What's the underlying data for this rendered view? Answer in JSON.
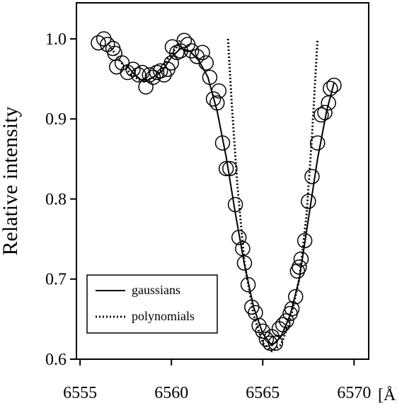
{
  "chart_data": {
    "type": "scatter",
    "title": "",
    "xlabel": "",
    "x_unit": "[Å]",
    "ylabel": "Relative intensity",
    "xlim": [
      6554.8,
      6570.8
    ],
    "ylim": [
      0.6,
      1.045
    ],
    "x_ticks": [
      6555,
      6560,
      6565,
      6570
    ],
    "y_ticks": [
      0.6,
      0.7,
      0.8,
      0.9,
      1.0
    ],
    "x_tick_labels": [
      "6555",
      "6560",
      "6565",
      "6570"
    ],
    "y_tick_labels": [
      "0.6",
      "0.7",
      "0.8",
      "0.9",
      "1.0"
    ],
    "grid": false,
    "legend_position": "bottom-left",
    "legend": [
      {
        "label": "gaussians",
        "style": "solid"
      },
      {
        "label": "polynomials",
        "style": "dotted"
      }
    ],
    "series": [
      {
        "type": "scatter",
        "marker": "open-circle",
        "points": [
          [
            6556.0,
            0.995
          ],
          [
            6556.3,
            1.0
          ],
          [
            6556.5,
            0.993
          ],
          [
            6556.8,
            0.988
          ],
          [
            6556.9,
            0.982
          ],
          [
            6557.0,
            0.965
          ],
          [
            6557.3,
            0.97
          ],
          [
            6557.6,
            0.958
          ],
          [
            6557.9,
            0.962
          ],
          [
            6558.2,
            0.955
          ],
          [
            6558.4,
            0.958
          ],
          [
            6558.6,
            0.94
          ],
          [
            6558.8,
            0.955
          ],
          [
            6559.0,
            0.952
          ],
          [
            6559.2,
            0.958
          ],
          [
            6559.4,
            0.96
          ],
          [
            6559.6,
            0.955
          ],
          [
            6559.8,
            0.962
          ],
          [
            6560.0,
            0.97
          ],
          [
            6560.05,
            0.99
          ],
          [
            6560.3,
            0.983
          ],
          [
            6560.5,
            0.985
          ],
          [
            6560.7,
            0.998
          ],
          [
            6560.9,
            0.993
          ],
          [
            6561.1,
            0.985
          ],
          [
            6561.4,
            0.978
          ],
          [
            6561.7,
            0.983
          ],
          [
            6561.9,
            0.97
          ],
          [
            6562.1,
            0.952
          ],
          [
            6562.3,
            0.925
          ],
          [
            6562.5,
            0.92
          ],
          [
            6562.6,
            0.935
          ],
          [
            6562.8,
            0.87
          ],
          [
            6563.0,
            0.838
          ],
          [
            6563.2,
            0.838
          ],
          [
            6563.5,
            0.793
          ],
          [
            6563.7,
            0.752
          ],
          [
            6563.9,
            0.738
          ],
          [
            6564.0,
            0.72
          ],
          [
            6564.2,
            0.693
          ],
          [
            6564.4,
            0.665
          ],
          [
            6564.6,
            0.658
          ],
          [
            6564.8,
            0.642
          ],
          [
            6565.0,
            0.635
          ],
          [
            6565.2,
            0.625
          ],
          [
            6565.4,
            0.62
          ],
          [
            6565.5,
            0.628
          ],
          [
            6565.7,
            0.62
          ],
          [
            6565.9,
            0.638
          ],
          [
            6566.1,
            0.643
          ],
          [
            6566.3,
            0.648
          ],
          [
            6566.5,
            0.657
          ],
          [
            6566.6,
            0.663
          ],
          [
            6566.8,
            0.678
          ],
          [
            6566.9,
            0.71
          ],
          [
            6567.0,
            0.715
          ],
          [
            6567.1,
            0.725
          ],
          [
            6567.3,
            0.748
          ],
          [
            6567.5,
            0.797
          ],
          [
            6567.7,
            0.828
          ],
          [
            6568.0,
            0.87
          ],
          [
            6568.2,
            0.905
          ],
          [
            6568.4,
            0.908
          ],
          [
            6568.6,
            0.92
          ],
          [
            6568.7,
            0.938
          ],
          [
            6568.9,
            0.942
          ]
        ]
      },
      {
        "name": "gaussians",
        "type": "line",
        "style": "solid",
        "points": [
          [
            6557.5,
            0.968
          ],
          [
            6558.0,
            0.955
          ],
          [
            6558.5,
            0.946
          ],
          [
            6559.0,
            0.952
          ],
          [
            6559.5,
            0.96
          ],
          [
            6560.0,
            0.977
          ],
          [
            6560.5,
            0.988
          ],
          [
            6561.0,
            0.985
          ],
          [
            6561.5,
            0.973
          ],
          [
            6562.0,
            0.952
          ],
          [
            6562.5,
            0.91
          ],
          [
            6563.0,
            0.852
          ],
          [
            6563.5,
            0.782
          ],
          [
            6564.0,
            0.718
          ],
          [
            6564.5,
            0.665
          ],
          [
            6565.0,
            0.632
          ],
          [
            6565.5,
            0.617
          ],
          [
            6566.0,
            0.628
          ],
          [
            6566.5,
            0.655
          ],
          [
            6567.0,
            0.7
          ],
          [
            6567.5,
            0.775
          ],
          [
            6568.0,
            0.85
          ],
          [
            6568.5,
            0.91
          ],
          [
            6568.9,
            0.945
          ]
        ]
      },
      {
        "name": "polynomials",
        "type": "line",
        "style": "dotted",
        "segments": [
          [
            [
              6556.6,
              0.992
            ],
            [
              6557.2,
              0.972
            ],
            [
              6557.8,
              0.955
            ],
            [
              6558.3,
              0.948
            ],
            [
              6558.8,
              0.95
            ],
            [
              6559.3,
              0.955
            ],
            [
              6559.8,
              0.975
            ],
            [
              6560.3,
              0.99
            ],
            [
              6560.5,
              1.0
            ]
          ],
          [
            [
              6563.1,
              1.0
            ],
            [
              6563.3,
              0.92
            ],
            [
              6563.6,
              0.82
            ],
            [
              6564.0,
              0.72
            ],
            [
              6564.5,
              0.655
            ],
            [
              6565.0,
              0.62
            ],
            [
              6565.5,
              0.61
            ],
            [
              6566.0,
              0.618
            ],
            [
              6566.5,
              0.648
            ],
            [
              6567.0,
              0.7
            ],
            [
              6567.4,
              0.78
            ],
            [
              6567.7,
              0.88
            ],
            [
              6568.0,
              1.0
            ]
          ]
        ]
      }
    ]
  }
}
